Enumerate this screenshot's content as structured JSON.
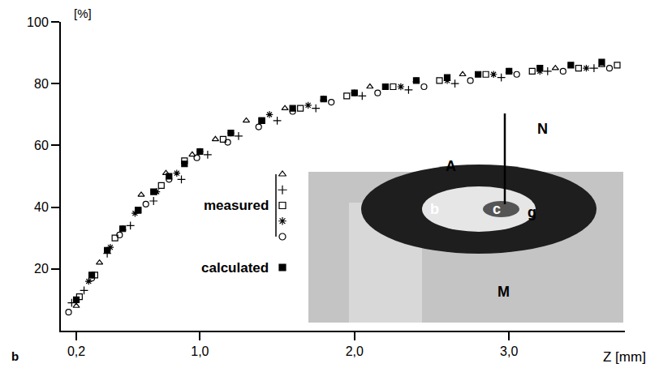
{
  "chart_data": {
    "type": "scatter",
    "panel": "b",
    "x_label": "Z [mm]",
    "y_label": "[%]",
    "xlim": [
      0.1,
      3.75
    ],
    "xticks": [
      {
        "value": 0.2,
        "label": "0,2"
      },
      {
        "value": 1.0,
        "label": "1,0"
      },
      {
        "value": 2.0,
        "label": "2,0"
      },
      {
        "value": 3.0,
        "label": "3,0"
      }
    ],
    "ylim": [
      0,
      100
    ],
    "yticks": [
      20,
      40,
      60,
      80,
      100
    ],
    "grid": false,
    "key": {
      "measured": "measured",
      "calculated": "calculated"
    },
    "inset": {
      "labels": [
        "N",
        "A",
        "b",
        "c",
        "g",
        "M"
      ]
    },
    "series": [
      {
        "name": "measured",
        "color": "#000000",
        "marker": "triangle-up-open",
        "x": [
          0.2,
          0.35,
          0.5,
          0.62,
          0.78,
          0.95,
          1.1,
          1.3,
          1.55,
          1.8,
          2.1,
          2.4,
          2.7,
          3.0,
          3.3,
          3.6
        ],
        "values": [
          8,
          22,
          33,
          44,
          51,
          57,
          62,
          68,
          72,
          75,
          79,
          81,
          83,
          84,
          85,
          86
        ]
      },
      {
        "name": "measured",
        "color": "#000000",
        "marker": "cross-thin",
        "x": [
          0.17,
          0.25,
          0.4,
          0.55,
          0.7,
          0.88,
          1.05,
          1.25,
          1.5,
          1.75,
          2.05,
          2.35,
          2.65,
          2.95,
          3.25,
          3.55
        ],
        "values": [
          9,
          13,
          25,
          34,
          42,
          49,
          57,
          63,
          68,
          72,
          76,
          78,
          80,
          82,
          84,
          85
        ]
      },
      {
        "name": "measured",
        "color": "#000000",
        "marker": "square-open",
        "x": [
          0.22,
          0.32,
          0.45,
          0.6,
          0.75,
          0.9,
          1.15,
          1.4,
          1.65,
          1.95,
          2.25,
          2.55,
          2.85,
          3.15,
          3.45,
          3.7
        ],
        "values": [
          11,
          18,
          30,
          39,
          47,
          55,
          62,
          68,
          72,
          76,
          79,
          81,
          83,
          84,
          85,
          86
        ]
      },
      {
        "name": "measured",
        "color": "#000000",
        "marker": "asterisk",
        "x": [
          0.28,
          0.42,
          0.58,
          0.72,
          0.85,
          1.0,
          1.2,
          1.45,
          1.7,
          2.0,
          2.3,
          2.6,
          2.9,
          3.2,
          3.5
        ],
        "values": [
          16,
          27,
          38,
          45,
          51,
          58,
          64,
          70,
          73,
          77,
          79,
          81,
          83,
          84,
          85
        ]
      },
      {
        "name": "measured",
        "color": "#000000",
        "marker": "circle-open",
        "x": [
          0.15,
          0.3,
          0.48,
          0.65,
          0.8,
          0.98,
          1.18,
          1.38,
          1.6,
          1.85,
          2.15,
          2.45,
          2.75,
          3.05,
          3.35,
          3.65
        ],
        "values": [
          6,
          17,
          31,
          41,
          49,
          56,
          61,
          66,
          71,
          74,
          77,
          79,
          81,
          83,
          84,
          85
        ]
      },
      {
        "name": "calculated",
        "color": "#000000",
        "marker": "square",
        "x": [
          0.2,
          0.3,
          0.4,
          0.5,
          0.6,
          0.7,
          0.8,
          0.9,
          1.0,
          1.2,
          1.4,
          1.6,
          1.8,
          2.0,
          2.2,
          2.4,
          2.6,
          2.8,
          3.0,
          3.2,
          3.4,
          3.6
        ],
        "values": [
          10,
          18,
          26,
          33,
          39,
          45,
          50,
          54,
          58,
          64,
          68,
          72,
          75,
          77,
          79,
          81,
          82,
          83,
          84,
          85,
          86,
          87
        ]
      }
    ]
  }
}
